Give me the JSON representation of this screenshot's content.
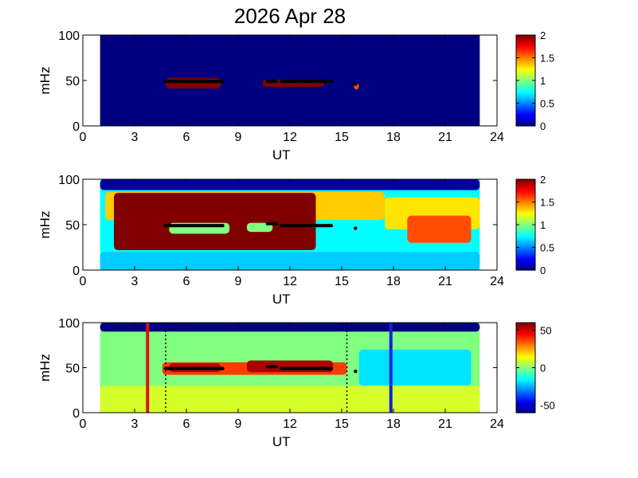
{
  "figure": {
    "title": "2026 Apr 28"
  },
  "chart_data": [
    {
      "type": "heatmap",
      "xlabel": "UT",
      "ylabel": "mHz",
      "xlim": [
        0,
        24
      ],
      "ylim": [
        0,
        100
      ],
      "xticks": [
        "0",
        "3",
        "6",
        "9",
        "12",
        "15",
        "18",
        "21",
        "24"
      ],
      "yticks": [
        "0",
        "50",
        "100"
      ],
      "data_range_ut": [
        1,
        23
      ],
      "colorbar": {
        "min": 0,
        "max": 2,
        "ticks": [
          "0",
          "0.5",
          "1",
          "1.5",
          "2"
        ]
      },
      "background_level": 0.0,
      "regions": [
        {
          "ut": [
            4.8,
            8.0
          ],
          "mhz": [
            41,
            53
          ],
          "level": 2.0
        },
        {
          "ut": [
            10.4,
            14.0
          ],
          "mhz": [
            43,
            51
          ],
          "level": 2.0
        },
        {
          "ut": [
            15.7,
            16.0
          ],
          "mhz": [
            40,
            47
          ],
          "level": 1.6
        }
      ],
      "markers": [
        {
          "ut": [
            4.8,
            8.1
          ],
          "mhz": 49
        },
        {
          "ut": [
            10.7,
            11.2
          ],
          "mhz": 49
        },
        {
          "ut": [
            11.5,
            14.4
          ],
          "mhz": 49
        },
        {
          "ut": [
            15.8,
            15.8
          ],
          "mhz": 46
        }
      ]
    },
    {
      "type": "heatmap",
      "xlabel": "UT",
      "ylabel": "mHz",
      "xlim": [
        0,
        24
      ],
      "ylim": [
        0,
        100
      ],
      "xticks": [
        "0",
        "3",
        "6",
        "9",
        "12",
        "15",
        "18",
        "21",
        "24"
      ],
      "yticks": [
        "0",
        "50",
        "100"
      ],
      "data_range_ut": [
        1,
        23
      ],
      "colorbar": {
        "min": 0,
        "max": 2,
        "ticks": [
          "0",
          "0.5",
          "1",
          "1.5",
          "2"
        ]
      },
      "background_level": 0.75,
      "regions": [
        {
          "ut": [
            1.0,
            23.0
          ],
          "mhz": [
            88,
            100
          ],
          "level": 0.05
        },
        {
          "ut": [
            1.3,
            17.5
          ],
          "mhz": [
            55,
            86
          ],
          "level": 1.35
        },
        {
          "ut": [
            17.5,
            23.0
          ],
          "mhz": [
            45,
            80
          ],
          "level": 1.3
        },
        {
          "ut": [
            1.8,
            13.5
          ],
          "mhz": [
            22,
            85
          ],
          "level": 2.0
        },
        {
          "ut": [
            5.0,
            8.5
          ],
          "mhz": [
            40,
            52
          ],
          "level": 1.0
        },
        {
          "ut": [
            9.5,
            11.0
          ],
          "mhz": [
            42,
            52
          ],
          "level": 1.0
        },
        {
          "ut": [
            18.8,
            22.5
          ],
          "mhz": [
            30,
            60
          ],
          "level": 1.6
        },
        {
          "ut": [
            1.0,
            23.0
          ],
          "mhz": [
            0,
            20
          ],
          "level": 0.65
        }
      ],
      "markers": [
        {
          "ut": [
            4.8,
            8.1
          ],
          "mhz": 49
        },
        {
          "ut": [
            10.7,
            11.2
          ],
          "mhz": 51
        },
        {
          "ut": [
            11.5,
            14.4
          ],
          "mhz": 49
        },
        {
          "ut": [
            15.8,
            15.8
          ],
          "mhz": 46
        }
      ]
    },
    {
      "type": "heatmap",
      "xlabel": "UT",
      "ylabel": "mHz",
      "xlim": [
        0,
        24
      ],
      "ylim": [
        0,
        100
      ],
      "xticks": [
        "0",
        "3",
        "6",
        "9",
        "12",
        "15",
        "18",
        "21",
        "24"
      ],
      "yticks": [
        "0",
        "50",
        "100"
      ],
      "data_range_ut": [
        1,
        23
      ],
      "colorbar": {
        "min": -60,
        "max": 60,
        "ticks": [
          "50",
          "0",
          "-50"
        ]
      },
      "background_level": 0,
      "regions": [
        {
          "ut": [
            1.0,
            23.0
          ],
          "mhz": [
            90,
            100
          ],
          "level": -60
        },
        {
          "ut": [
            4.6,
            15.3
          ],
          "mhz": [
            42,
            56
          ],
          "level": 38
        },
        {
          "ut": [
            9.5,
            14.5
          ],
          "mhz": [
            45,
            58
          ],
          "level": 55
        },
        {
          "ut": [
            5.0,
            8.0
          ],
          "mhz": [
            45,
            55
          ],
          "level": 52
        },
        {
          "ut": [
            16.0,
            22.5
          ],
          "mhz": [
            30,
            70
          ],
          "level": -18
        },
        {
          "ut": [
            1.0,
            23.0
          ],
          "mhz": [
            0,
            30
          ],
          "level": 10
        }
      ],
      "markers": [
        {
          "ut": [
            4.8,
            8.1
          ],
          "mhz": 49
        },
        {
          "ut": [
            10.7,
            11.2
          ],
          "mhz": 51
        },
        {
          "ut": [
            11.5,
            14.4
          ],
          "mhz": 49
        },
        {
          "ut": [
            15.8,
            15.8
          ],
          "mhz": 46
        }
      ],
      "vlines": [
        {
          "ut": 3.75,
          "color": "#dd1111",
          "style": "solid"
        },
        {
          "ut": 4.8,
          "color": "#000000",
          "style": "dotted"
        },
        {
          "ut": 15.3,
          "color": "#000000",
          "style": "dotted"
        },
        {
          "ut": 17.85,
          "color": "#1122dd",
          "style": "solid"
        }
      ]
    }
  ]
}
